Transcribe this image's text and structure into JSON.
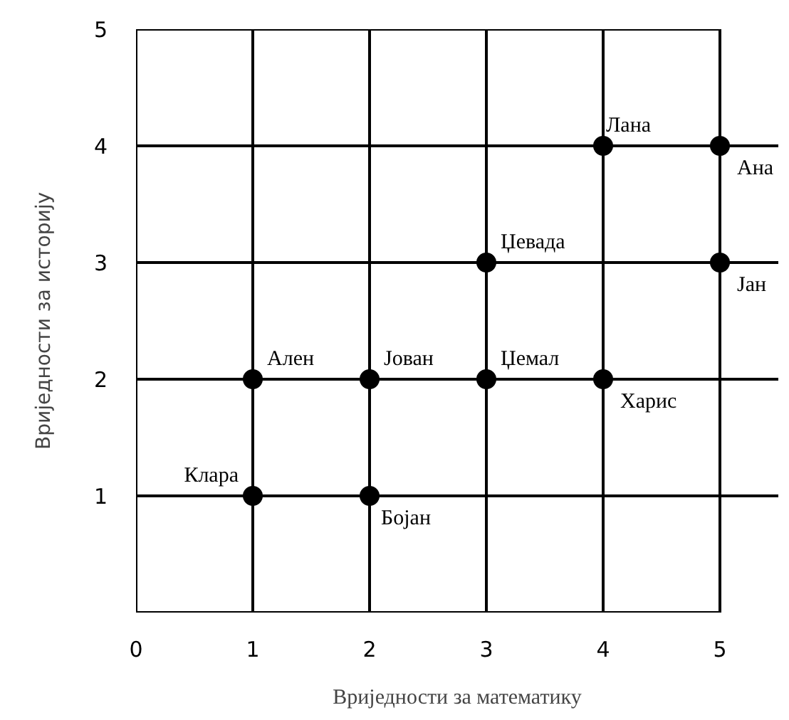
{
  "chart_data": {
    "type": "scatter",
    "xlabel": "Вриједности за математику",
    "ylabel": "Вриједности за историју",
    "x": [
      1,
      2,
      1,
      2,
      3,
      4,
      3,
      5,
      4,
      5
    ],
    "values": [
      1,
      1,
      2,
      2,
      2,
      2,
      3,
      3,
      4,
      4
    ],
    "color": "#000000",
    "marker": "circle",
    "grid": true,
    "xlim": [
      0,
      5
    ],
    "ylim": [
      0,
      5
    ],
    "xticks": [
      0,
      1,
      2,
      3,
      4,
      5
    ],
    "yticks": [
      1,
      2,
      3,
      4,
      5
    ],
    "annotations": [
      {
        "text": "Клара",
        "x": 1,
        "y": 1
      },
      {
        "text": "Бојан",
        "x": 2,
        "y": 1
      },
      {
        "text": "Ален",
        "x": 1,
        "y": 2
      },
      {
        "text": "Јован",
        "x": 2,
        "y": 2
      },
      {
        "text": "Џемал",
        "x": 3,
        "y": 2
      },
      {
        "text": "Харис",
        "x": 4,
        "y": 2
      },
      {
        "text": "Џевада",
        "x": 3,
        "y": 3
      },
      {
        "text": "Јан",
        "x": 5,
        "y": 3
      },
      {
        "text": "Лана",
        "x": 4,
        "y": 4
      },
      {
        "text": "Ана",
        "x": 5,
        "y": 4
      }
    ]
  }
}
